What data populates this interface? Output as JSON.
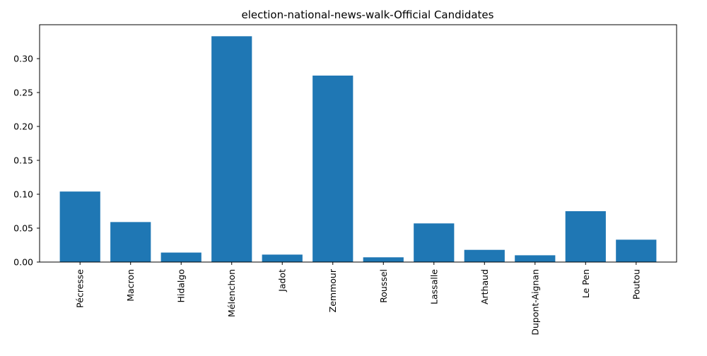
{
  "chart_data": {
    "type": "bar",
    "title": "election-national-news-walk-Official Candidates",
    "xlabel": "",
    "ylabel": "",
    "categories": [
      "Pécresse",
      "Macron",
      "Hidalgo",
      "Mélenchon",
      "Jadot",
      "Zemmour",
      "Roussel",
      "Lassalle",
      "Arthaud",
      "Dupont-Aignan",
      "Le Pen",
      "Poutou"
    ],
    "values": [
      0.104,
      0.059,
      0.014,
      0.333,
      0.011,
      0.275,
      0.007,
      0.057,
      0.018,
      0.01,
      0.075,
      0.033
    ],
    "ylim": [
      0,
      0.35
    ],
    "yticks": [
      "0.00",
      "0.05",
      "0.10",
      "0.15",
      "0.20",
      "0.25",
      "0.30"
    ],
    "grid": false,
    "bar_color": "#1f77b4"
  }
}
